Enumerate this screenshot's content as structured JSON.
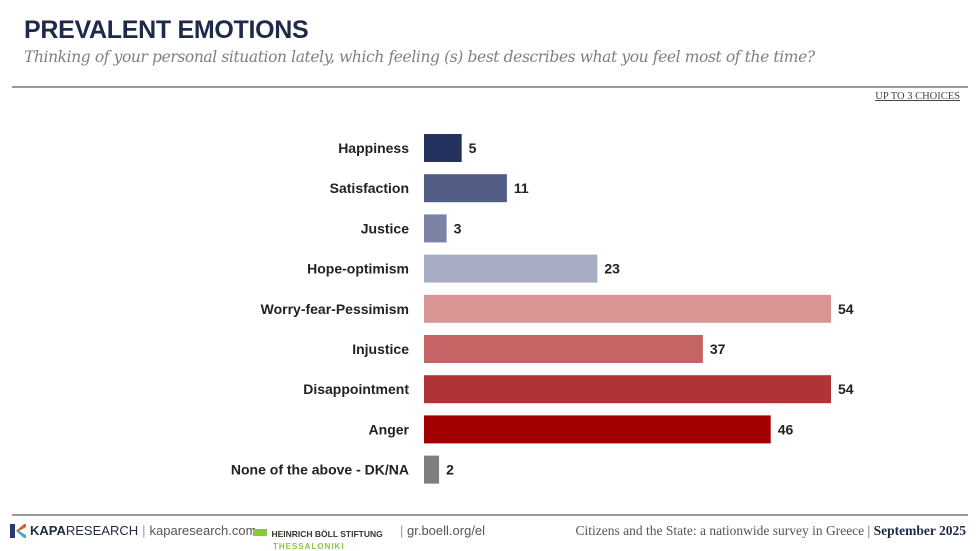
{
  "header": {
    "title": "PREVALENT EMOTIONS",
    "subtitle": "Thinking of your personal situation lately, which feeling (s) best describes what you feel most of the time?",
    "note": "UP TO 3 CHOICES"
  },
  "chart_data": {
    "type": "bar",
    "orientation": "horizontal",
    "categories": [
      "Happiness",
      "Satisfaction",
      "Justice",
      "Hope-optimism",
      "Worry-fear-Pessimism",
      "Injustice",
      "Disappointment",
      "Anger",
      "None of the above -  DK/NA"
    ],
    "values": [
      5,
      11,
      3,
      23,
      54,
      37,
      54,
      46,
      2
    ],
    "colors": [
      "#24305e",
      "#535d85",
      "#7b82a4",
      "#a8adc3",
      "#d99594",
      "#c56464",
      "#b03335",
      "#a00000",
      "#7f7f7f"
    ],
    "unit": "%",
    "grid": false,
    "data_labels": true
  },
  "footer": {
    "kapa_bold": "KAPA",
    "kapa_light": "RESEARCH",
    "kapa_url": "kaparesearch.com",
    "boell_name": "HEINRICH BÖLL STIFTUNG",
    "boell_city": "THESSALONIKI",
    "boell_url": "gr.boell.org/el",
    "survey": "Citizens and the State: a nationwide survey in Greece",
    "date": "September 2025"
  }
}
